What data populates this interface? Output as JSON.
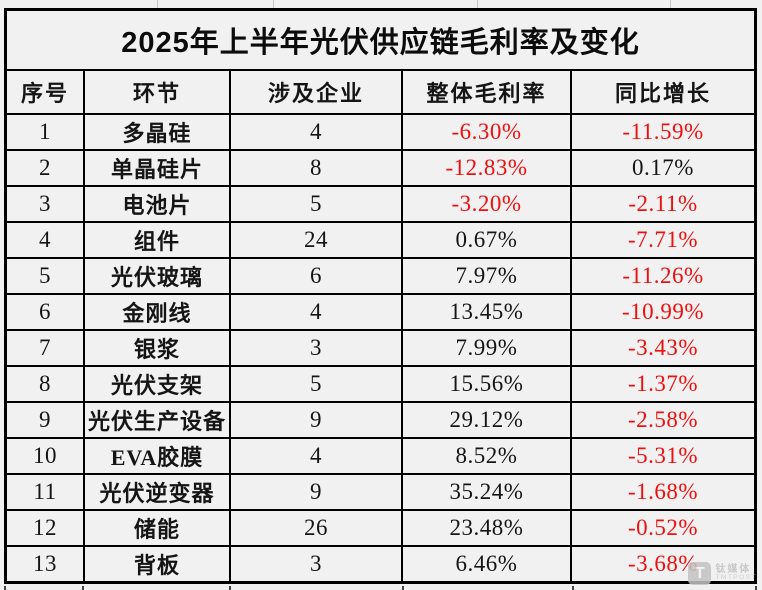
{
  "title": "2025年上半年光伏供应链毛利率及变化",
  "colors": {
    "background": "#f1f1f1",
    "border": "#000000",
    "text": "#151515",
    "negative_value": "#f10e0e"
  },
  "table": {
    "columns": [
      "序号",
      "环节",
      "涉及企业",
      "整体毛利率",
      "同比增长"
    ],
    "rows": [
      [
        "1",
        "多晶硅",
        "4",
        "-6.30%",
        "-11.59%"
      ],
      [
        "2",
        "单晶硅片",
        "8",
        "-12.83%",
        "0.17%"
      ],
      [
        "3",
        "电池片",
        "5",
        "-3.20%",
        "-2.11%"
      ],
      [
        "4",
        "组件",
        "24",
        "0.67%",
        "-7.71%"
      ],
      [
        "5",
        "光伏玻璃",
        "6",
        "7.97%",
        "-11.26%"
      ],
      [
        "6",
        "金刚线",
        "4",
        "13.45%",
        "-10.99%"
      ],
      [
        "7",
        "银浆",
        "3",
        "7.99%",
        "-3.43%"
      ],
      [
        "8",
        "光伏支架",
        "5",
        "15.56%",
        "-1.37%"
      ],
      [
        "9",
        "光伏生产设备",
        "9",
        "29.12%",
        "-2.58%"
      ],
      [
        "10",
        "EVA胶膜",
        "4",
        "8.52%",
        "-5.31%"
      ],
      [
        "11",
        "光伏逆变器",
        "9",
        "35.24%",
        "-1.68%"
      ],
      [
        "12",
        "储能",
        "26",
        "23.48%",
        "-0.52%"
      ],
      [
        "13",
        "背板",
        "3",
        "6.46%",
        "-3.68%"
      ]
    ]
  },
  "chart_data": {
    "type": "table",
    "title": "2025年上半年光伏供应链毛利率及变化",
    "columns": [
      "序号",
      "环节",
      "涉及企业",
      "整体毛利率",
      "同比增长"
    ],
    "categories": [
      "多晶硅",
      "单晶硅片",
      "电池片",
      "组件",
      "光伏玻璃",
      "金刚线",
      "银浆",
      "光伏支架",
      "光伏生产设备",
      "EVA胶膜",
      "光伏逆变器",
      "储能",
      "背板"
    ],
    "series": [
      {
        "name": "涉及企业",
        "values": [
          4,
          8,
          5,
          24,
          6,
          4,
          3,
          5,
          9,
          4,
          9,
          26,
          3
        ]
      },
      {
        "name": "整体毛利率(%)",
        "values": [
          -6.3,
          -12.83,
          -3.2,
          0.67,
          7.97,
          13.45,
          7.99,
          15.56,
          29.12,
          8.52,
          35.24,
          23.48,
          6.46
        ]
      },
      {
        "name": "同比增长(%)",
        "values": [
          -11.59,
          0.17,
          -2.11,
          -7.71,
          -11.26,
          -10.99,
          -3.43,
          -1.37,
          -2.58,
          -5.31,
          -1.68,
          -0.52,
          -3.68
        ]
      }
    ],
    "layout_hints": {
      "negative_values_colored": "red",
      "grid": "on"
    }
  },
  "watermark": {
    "logo_letter": "T",
    "name": "钛媒体",
    "subname": "TMTPOST"
  }
}
